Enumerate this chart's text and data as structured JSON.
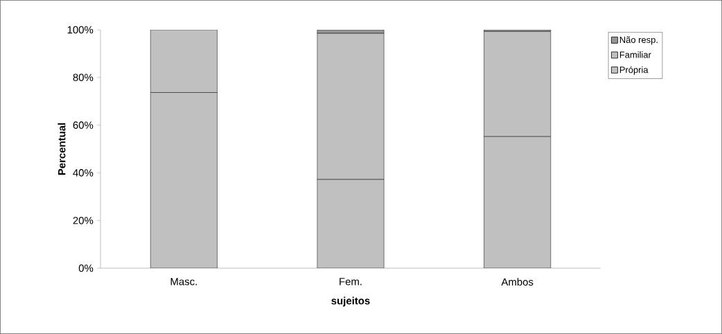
{
  "chart_data": {
    "type": "bar",
    "stacked": true,
    "xlabel": "sujeitos",
    "ylabel": "Percentual",
    "categories": [
      "Masc.",
      "Fem.",
      "Ambos"
    ],
    "series": [
      {
        "name": "Própria",
        "color": "#c0c0c0",
        "values": [
          73.7,
          37.2,
          55.2
        ]
      },
      {
        "name": "Familiar",
        "color": "#c0c0c0",
        "values": [
          26.3,
          61.3,
          44.1
        ]
      },
      {
        "name": "Não resp.",
        "color": "#969696",
        "values": [
          0,
          1.5,
          0.7
        ]
      }
    ],
    "ylim": [
      0,
      100
    ],
    "yticks": [
      {
        "value": 0,
        "label": "0%"
      },
      {
        "value": 20,
        "label": "20%"
      },
      {
        "value": 40,
        "label": "40%"
      },
      {
        "value": 60,
        "label": "60%"
      },
      {
        "value": 80,
        "label": "80%"
      },
      {
        "value": 100,
        "label": "100%"
      }
    ],
    "grid": false,
    "legend": "right"
  }
}
